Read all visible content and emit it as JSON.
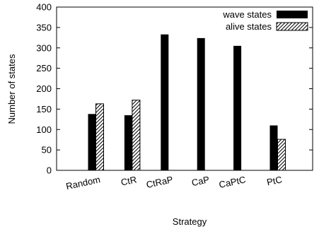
{
  "chart_data": {
    "type": "bar",
    "title": "",
    "xlabel": "Strategy",
    "ylabel": "Number of states",
    "categories": [
      "Random",
      "CtR",
      "CtRaP",
      "CaP",
      "CaPtC",
      "PtC"
    ],
    "series": [
      {
        "name": "wave states",
        "values": [
          138,
          135,
          333,
          324,
          305,
          110
        ],
        "fill": "solid"
      },
      {
        "name": "alive states",
        "values": [
          163,
          172,
          0,
          0,
          0,
          76
        ],
        "fill": "hatched"
      }
    ],
    "ylim": [
      0,
      400
    ],
    "yticks": [
      0,
      50,
      100,
      150,
      200,
      250,
      300,
      350,
      400
    ],
    "grid": false,
    "legend_position": "top-right",
    "colors": {
      "solid": "#000000",
      "hatch": "#000000",
      "background": "#ffffff"
    }
  }
}
